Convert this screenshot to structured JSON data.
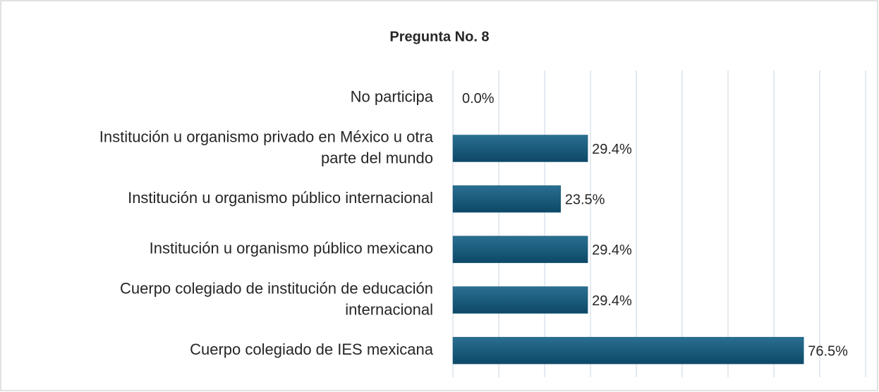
{
  "chart_data": {
    "type": "bar",
    "orientation": "horizontal",
    "title": "Pregunta No. 8",
    "categories": [
      "No participa",
      "Institución u organismo privado en México u otra\nparte del mundo",
      "Institución u organismo público internacional",
      "Institución u organismo público mexicano",
      "Cuerpo colegiado de institución de educación\ninternacional",
      "Cuerpo colegiado de IES mexicana"
    ],
    "values": [
      0.0,
      29.4,
      23.5,
      29.4,
      29.4,
      76.5
    ],
    "value_labels": [
      "0.0%",
      "29.4%",
      "23.5%",
      "29.4%",
      "29.4%",
      "76.5%"
    ],
    "color": "#1a5c7c",
    "xlim": [
      0,
      90
    ],
    "xticks": [
      0,
      10,
      20,
      30,
      40,
      50,
      60,
      70,
      80,
      90
    ],
    "grid": true
  }
}
